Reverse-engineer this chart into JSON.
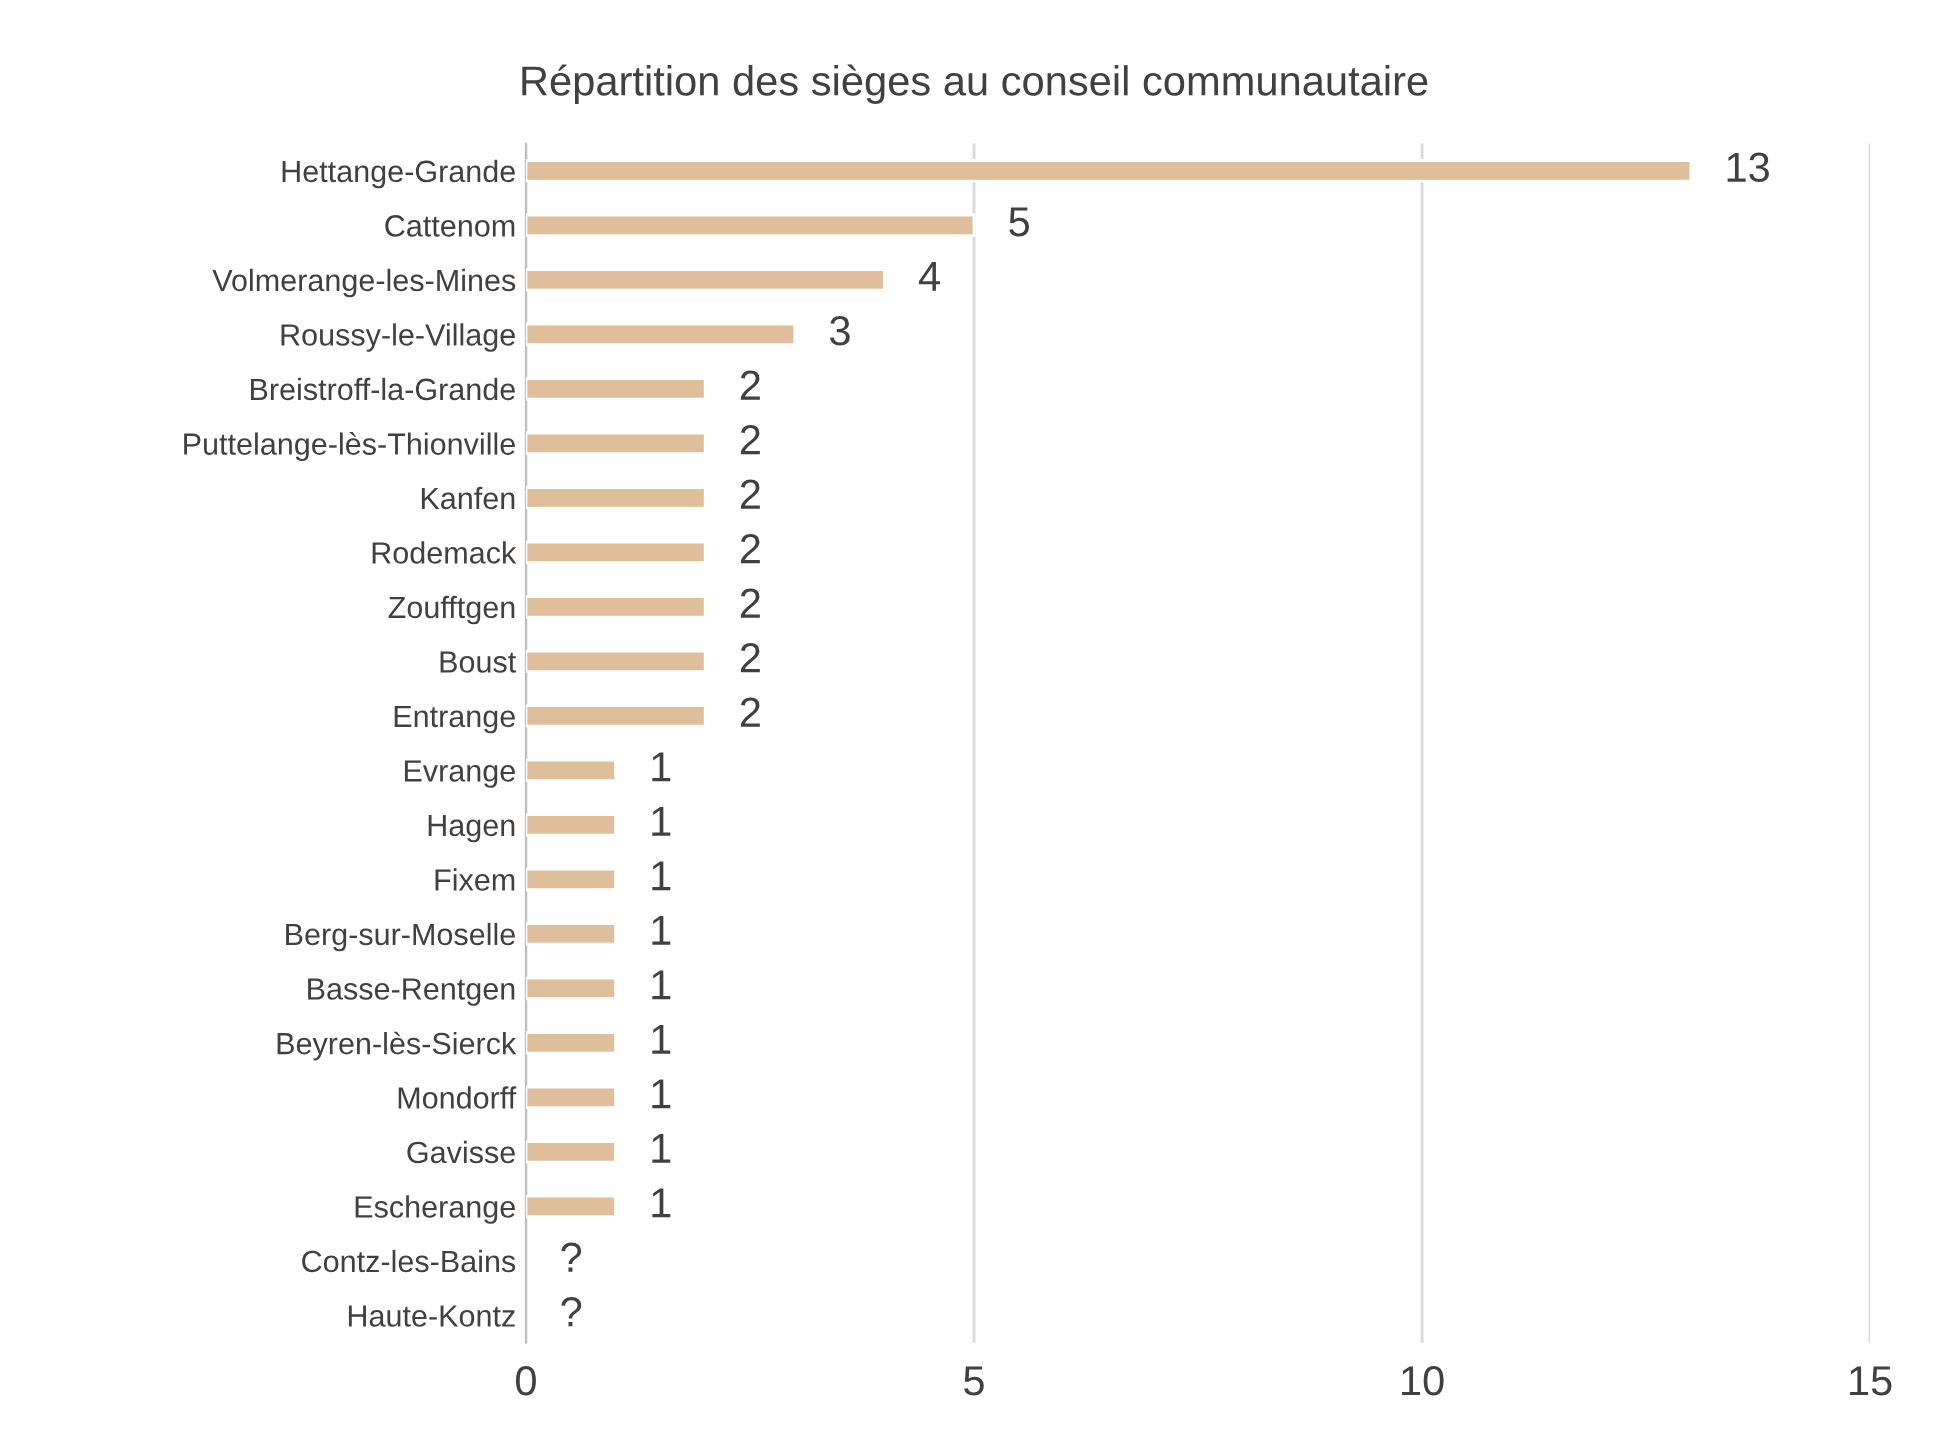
{
  "chart_data": {
    "type": "bar",
    "orientation": "horizontal",
    "title": "Répartition des sièges au conseil communautaire",
    "categories": [
      "Hettange-Grande",
      "Cattenom",
      "Volmerange-les-Mines",
      "Roussy-le-Village",
      "Breistroff-la-Grande",
      "Puttelange-lès-Thionville",
      "Kanfen",
      "Rodemack",
      "Zoufftgen",
      "Boust",
      "Entrange",
      "Evrange",
      "Hagen",
      "Fixem",
      "Berg-sur-Moselle",
      "Basse-Rentgen",
      "Beyren-lès-Sierck",
      "Mondorff",
      "Gavisse",
      "Escherange",
      "Contz-les-Bains",
      "Haute-Kontz"
    ],
    "values": [
      13,
      5,
      4,
      3,
      2,
      2,
      2,
      2,
      2,
      2,
      2,
      1,
      1,
      1,
      1,
      1,
      1,
      1,
      1,
      1,
      null,
      null
    ],
    "value_labels": [
      "13",
      "5",
      "4",
      "3",
      "2",
      "2",
      "2",
      "2",
      "2",
      "2",
      "2",
      "1",
      "1",
      "1",
      "1",
      "1",
      "1",
      "1",
      "1",
      "1",
      "?",
      "?"
    ],
    "color": "#dfbf9b",
    "xlim": [
      0,
      15
    ],
    "xticks": [
      0,
      5,
      10,
      15
    ],
    "grid": "x",
    "legend": false
  }
}
